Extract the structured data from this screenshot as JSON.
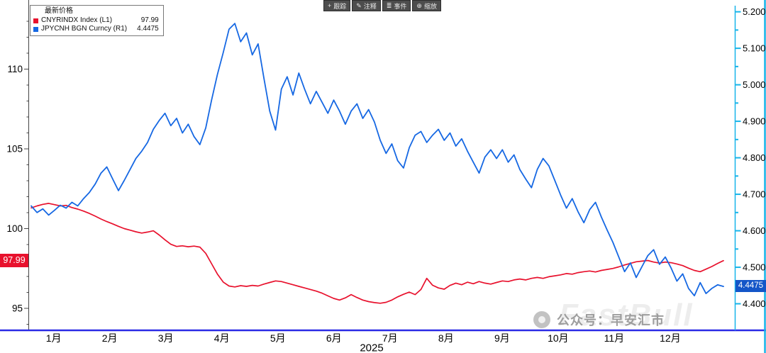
{
  "toolbar": {
    "items": [
      {
        "icon": "+",
        "label": "跟踪"
      },
      {
        "icon": "✎",
        "label": "注释"
      },
      {
        "icon": "≣",
        "label": "事件"
      },
      {
        "icon": "⊕",
        "label": "缩放"
      }
    ]
  },
  "legend": {
    "header": "最新价格",
    "items": [
      {
        "label": "CNYRINDX Index  (L1)",
        "value": "97.99",
        "color": "#e8112d"
      },
      {
        "label": "JPYCNH BGN Curncy  (R1)",
        "value": "4.4475",
        "color": "#1668e3"
      }
    ]
  },
  "badges": {
    "left": {
      "value": "97.99",
      "color": "#e8112d"
    },
    "right": {
      "value": "4.4475",
      "color": "#1456c8"
    }
  },
  "watermark": {
    "brand": "FastBull",
    "text": "公众号：早安汇市"
  },
  "chart_data": {
    "type": "line",
    "title": "",
    "x_axis": {
      "labels": [
        "1月",
        "2月",
        "3月",
        "4月",
        "5月",
        "6月",
        "7月",
        "8月",
        "9月",
        "10月",
        "11月",
        "12月"
      ],
      "year": "2025"
    },
    "left_axis": {
      "range": [
        93.8,
        113.8
      ],
      "ticks": [
        95,
        100,
        105,
        110
      ],
      "minor_step": 1
    },
    "right_axis": {
      "range": [
        4.335,
        5.209
      ],
      "ticks": [
        4.4,
        4.5,
        4.6,
        4.7,
        4.8,
        4.9,
        5.0,
        5.1,
        5.2
      ],
      "decimals": 4
    },
    "colors": {
      "bottom_axis": "#2b2be6",
      "right_axis": "#17b4e9",
      "left_axis": "#444444",
      "text": "#000000"
    },
    "series": [
      {
        "name": "CNYRINDX Index (L1)",
        "axis": "left",
        "color": "#e8112d",
        "width": 1.7,
        "last": 97.99,
        "values": [
          101.3,
          101.42,
          101.52,
          101.58,
          101.5,
          101.42,
          101.46,
          101.32,
          101.22,
          101.1,
          100.95,
          100.78,
          100.6,
          100.44,
          100.3,
          100.14,
          100.0,
          99.9,
          99.8,
          99.72,
          99.78,
          99.86,
          99.6,
          99.3,
          99.02,
          98.88,
          98.92,
          98.86,
          98.9,
          98.84,
          98.45,
          97.8,
          97.15,
          96.65,
          96.4,
          96.34,
          96.42,
          96.38,
          96.44,
          96.4,
          96.52,
          96.62,
          96.72,
          96.68,
          96.58,
          96.48,
          96.38,
          96.28,
          96.18,
          96.08,
          95.95,
          95.78,
          95.62,
          95.52,
          95.66,
          95.86,
          95.68,
          95.52,
          95.42,
          95.36,
          95.32,
          95.38,
          95.52,
          95.72,
          95.88,
          96.02,
          95.86,
          96.18,
          96.88,
          96.45,
          96.28,
          96.2,
          96.44,
          96.58,
          96.48,
          96.64,
          96.54,
          96.68,
          96.58,
          96.52,
          96.62,
          96.72,
          96.68,
          96.78,
          96.84,
          96.78,
          96.88,
          96.94,
          96.88,
          96.98,
          97.04,
          97.1,
          97.18,
          97.14,
          97.24,
          97.3,
          97.34,
          97.28,
          97.38,
          97.44,
          97.5,
          97.6,
          97.72,
          97.82,
          97.92,
          97.96,
          98.0,
          97.9,
          97.84,
          97.9,
          97.86,
          97.78,
          97.68,
          97.52,
          97.38,
          97.3,
          97.46,
          97.62,
          97.82,
          97.99
        ]
      },
      {
        "name": "JPYCNH BGN Curncy (R1)",
        "axis": "right",
        "color": "#1668e3",
        "width": 1.8,
        "last": 4.4475,
        "values": [
          4.668,
          4.65,
          4.66,
          4.643,
          4.656,
          4.67,
          4.662,
          4.678,
          4.668,
          4.688,
          4.705,
          4.728,
          4.758,
          4.775,
          4.742,
          4.71,
          4.738,
          4.768,
          4.798,
          4.818,
          4.842,
          4.878,
          4.902,
          4.922,
          4.888,
          4.908,
          4.868,
          4.892,
          4.858,
          4.836,
          4.882,
          4.958,
          5.028,
          5.088,
          5.152,
          5.168,
          5.118,
          5.142,
          5.082,
          5.112,
          5.018,
          4.928,
          4.876,
          4.988,
          5.022,
          4.972,
          5.032,
          4.988,
          4.948,
          4.982,
          4.952,
          4.922,
          4.958,
          4.928,
          4.892,
          4.928,
          4.948,
          4.908,
          4.932,
          4.898,
          4.848,
          4.812,
          4.838,
          4.792,
          4.772,
          4.828,
          4.862,
          4.872,
          4.842,
          4.862,
          4.878,
          4.848,
          4.868,
          4.832,
          4.852,
          4.818,
          4.788,
          4.758,
          4.802,
          4.822,
          4.798,
          4.822,
          4.788,
          4.808,
          4.768,
          4.742,
          4.718,
          4.768,
          4.798,
          4.778,
          4.738,
          4.698,
          4.662,
          4.688,
          4.652,
          4.622,
          4.658,
          4.678,
          4.638,
          4.602,
          4.568,
          4.528,
          4.488,
          4.512,
          4.472,
          4.502,
          4.532,
          4.548,
          4.508,
          4.528,
          4.498,
          4.462,
          4.482,
          4.442,
          4.422,
          4.458,
          4.428,
          4.442,
          4.452,
          4.4475
        ]
      }
    ]
  }
}
